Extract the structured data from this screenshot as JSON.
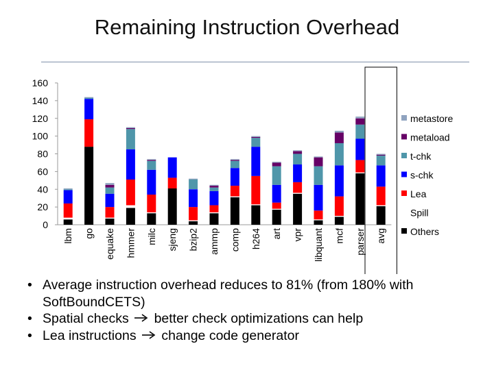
{
  "slide": {
    "title": "Remaining Instruction Overhead"
  },
  "bullets": [
    {
      "text": "Average instruction overhead reduces to 81% (from 180% with SoftBoundCETS)"
    },
    {
      "pre": "Spatial checks",
      "arrow_icon": "right-arrow-icon",
      "post": "better check optimizations can help"
    },
    {
      "pre": "Lea instructions",
      "arrow_icon": "right-arrow-icon",
      "post": "change code generator"
    }
  ],
  "chart_data": {
    "type": "bar",
    "stacked": true,
    "categories": [
      "lbm",
      "go",
      "equake",
      "hmmer",
      "milc",
      "sjeng",
      "bzip2",
      "ammp",
      "comp",
      "h264",
      "art",
      "vpr",
      "libquant",
      "mcf",
      "parser",
      "avg"
    ],
    "ylim": [
      0,
      160
    ],
    "yticks": [
      "0",
      "20",
      "40",
      "60",
      "80",
      "100",
      "120",
      "140",
      "160"
    ],
    "highlight_category": "avg",
    "legend_position": "right",
    "series": [
      {
        "name": "Others",
        "color": "#000000",
        "values": [
          6,
          88,
          7,
          19,
          13,
          41,
          4,
          13,
          31,
          22,
          17,
          35,
          5,
          9,
          58,
          21
        ]
      },
      {
        "name": "Spill",
        "color": "#ffffff",
        "values": [
          2,
          0,
          1,
          3,
          1,
          0,
          1,
          1,
          1,
          1,
          1,
          1,
          1,
          1,
          1,
          1
        ]
      },
      {
        "name": "Lea",
        "color": "#ff0000",
        "values": [
          16,
          31,
          12,
          29,
          20,
          12,
          15,
          8,
          12,
          32,
          7,
          12,
          10,
          22,
          14,
          21
        ]
      },
      {
        "name": "s-chk",
        "color": "#0000ff",
        "values": [
          15,
          23,
          15,
          34,
          28,
          23,
          20,
          16,
          20,
          33,
          20,
          20,
          29,
          35,
          24,
          24
        ]
      },
      {
        "name": "t-chk",
        "color": "#4f96aa",
        "values": [
          1,
          1,
          7,
          23,
          10,
          0,
          11,
          4,
          8,
          10,
          21,
          12,
          21,
          25,
          16,
          11
        ]
      },
      {
        "name": "metaload",
        "color": "#660066",
        "values": [
          0,
          0,
          3,
          1,
          1,
          0,
          0,
          2,
          1,
          1,
          4,
          3,
          10,
          12,
          7,
          1
        ]
      },
      {
        "name": "metastore",
        "color": "#8fa3bf",
        "values": [
          1,
          1,
          2,
          1,
          1,
          0,
          1,
          1,
          1,
          1,
          1,
          1,
          1,
          2,
          2,
          1
        ]
      }
    ]
  }
}
